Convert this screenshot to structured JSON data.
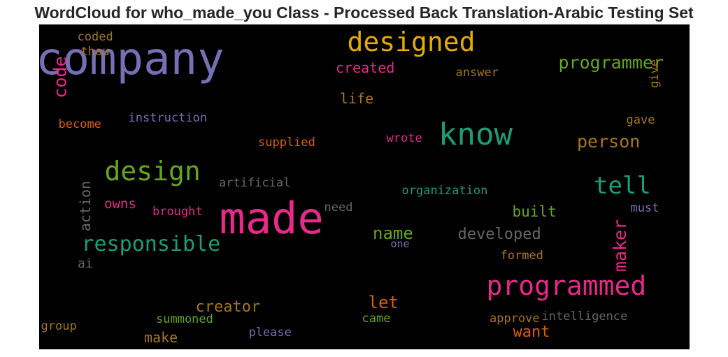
{
  "chart_data": {
    "type": "wordcloud",
    "title": "WordCloud for who_made_you Class - Processed Back Translation-Arabic Testing Set",
    "background": "#000000",
    "words": [
      {
        "text": "company",
        "color": "#7570b3",
        "orientation": "horizontal"
      },
      {
        "text": "made",
        "color": "#e7298a",
        "orientation": "horizontal"
      },
      {
        "text": "designed",
        "color": "#e6ab02",
        "orientation": "horizontal"
      },
      {
        "text": "programmed",
        "color": "#e7298a",
        "orientation": "horizontal"
      },
      {
        "text": "know",
        "color": "#1b9e77",
        "orientation": "horizontal"
      },
      {
        "text": "design",
        "color": "#66a61e",
        "orientation": "horizontal"
      },
      {
        "text": "responsible",
        "color": "#1b9e77",
        "orientation": "horizontal"
      },
      {
        "text": "tell",
        "color": "#1b9e77",
        "orientation": "horizontal"
      },
      {
        "text": "programmer",
        "color": "#66a61e",
        "orientation": "horizontal"
      },
      {
        "text": "person",
        "color": "#a6761d",
        "orientation": "horizontal"
      },
      {
        "text": "code",
        "color": "#e7298a",
        "orientation": "vertical"
      },
      {
        "text": "maker",
        "color": "#e7298a",
        "orientation": "vertical"
      },
      {
        "text": "name",
        "color": "#66a61e",
        "orientation": "horizontal"
      },
      {
        "text": "developed",
        "color": "#666666",
        "orientation": "horizontal"
      },
      {
        "text": "creator",
        "color": "#a6761d",
        "orientation": "horizontal"
      },
      {
        "text": "let",
        "color": "#d95f02",
        "orientation": "horizontal"
      },
      {
        "text": "want",
        "color": "#d95f02",
        "orientation": "horizontal"
      },
      {
        "text": "built",
        "color": "#66a61e",
        "orientation": "horizontal"
      },
      {
        "text": "created",
        "color": "#e7298a",
        "orientation": "horizontal"
      },
      {
        "text": "life",
        "color": "#a6761d",
        "orientation": "horizontal"
      },
      {
        "text": "action",
        "color": "#666666",
        "orientation": "vertical"
      },
      {
        "text": "make",
        "color": "#a6761d",
        "orientation": "horizontal"
      },
      {
        "text": "owns",
        "color": "#e7298a",
        "orientation": "horizontal"
      },
      {
        "text": "ai",
        "color": "#666666",
        "orientation": "horizontal"
      },
      {
        "text": "instruction",
        "color": "#7570b3",
        "orientation": "horizontal"
      },
      {
        "text": "supplied",
        "color": "#d95f02",
        "orientation": "horizontal"
      },
      {
        "text": "artificial",
        "color": "#666666",
        "orientation": "horizontal"
      },
      {
        "text": "organization",
        "color": "#1b9e77",
        "orientation": "horizontal"
      },
      {
        "text": "brought",
        "color": "#e7298a",
        "orientation": "horizontal"
      },
      {
        "text": "intelligence",
        "color": "#666666",
        "orientation": "horizontal"
      },
      {
        "text": "approve",
        "color": "#a6761d",
        "orientation": "horizontal"
      },
      {
        "text": "summoned",
        "color": "#66a61e",
        "orientation": "horizontal"
      },
      {
        "text": "please",
        "color": "#7570b3",
        "orientation": "horizontal"
      },
      {
        "text": "group",
        "color": "#a6761d",
        "orientation": "horizontal"
      },
      {
        "text": "came",
        "color": "#66a61e",
        "orientation": "horizontal"
      },
      {
        "text": "formed",
        "color": "#a6761d",
        "orientation": "horizontal"
      },
      {
        "text": "answer",
        "color": "#a6761d",
        "orientation": "horizontal"
      },
      {
        "text": "gave",
        "color": "#a6761d",
        "orientation": "horizontal"
      },
      {
        "text": "give",
        "color": "#a6761d",
        "orientation": "vertical"
      },
      {
        "text": "wrote",
        "color": "#e7298a",
        "orientation": "horizontal"
      },
      {
        "text": "become",
        "color": "#d95f02",
        "orientation": "horizontal"
      },
      {
        "text": "coded",
        "color": "#a6761d",
        "orientation": "horizontal"
      },
      {
        "text": "thou",
        "color": "#a6761d",
        "orientation": "horizontal"
      },
      {
        "text": "need",
        "color": "#666666",
        "orientation": "horizontal"
      },
      {
        "text": "must",
        "color": "#7570b3",
        "orientation": "horizontal"
      },
      {
        "text": "one",
        "color": "#7570b3",
        "orientation": "horizontal"
      }
    ]
  }
}
